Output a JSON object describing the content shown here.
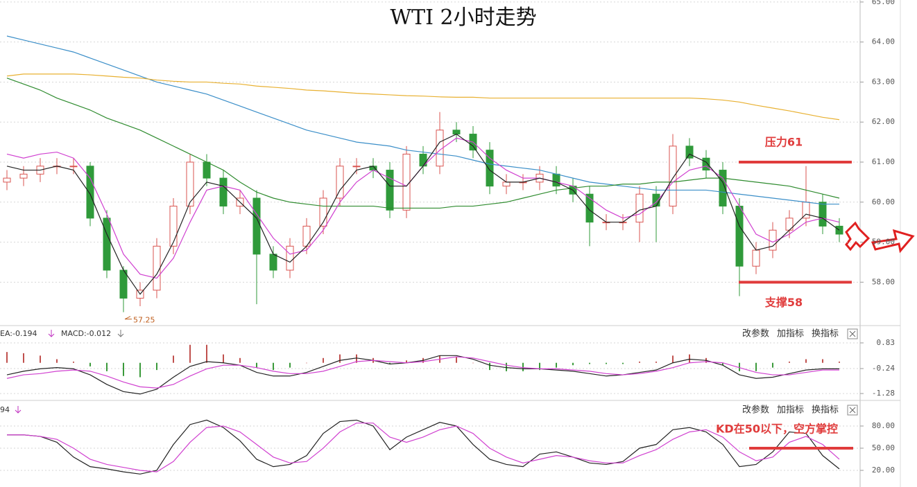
{
  "chart_data": [
    {
      "type": "candlestick",
      "title": "WTI 2小时走势",
      "open": [
        60.5,
        60.6,
        60.7,
        60.9,
        60.9,
        60.9,
        59.6,
        58.3,
        57.6,
        57.8,
        58.9,
        59.9,
        61.0,
        60.6,
        59.9,
        60.1,
        58.7,
        58.3,
        58.9,
        59.4,
        60.1,
        60.9,
        60.9,
        60.8,
        59.8,
        61.2,
        60.9,
        61.8,
        61.7,
        61.3,
        60.4,
        60.5,
        60.5,
        60.7,
        60.4,
        60.2,
        59.5,
        59.5,
        59.5,
        60.2,
        59.9,
        61.4,
        61.1,
        60.8,
        59.9,
        58.4,
        58.8,
        59.3,
        59.6,
        60.0,
        59.4
      ],
      "high": [
        60.8,
        60.9,
        61.1,
        61.1,
        61.1,
        61.0,
        59.8,
        58.4,
        58.0,
        59.1,
        60.1,
        61.2,
        61.2,
        60.8,
        60.3,
        60.3,
        58.9,
        59.1,
        59.6,
        60.3,
        61.1,
        61.1,
        61.1,
        61.0,
        61.4,
        61.4,
        62.25,
        62.0,
        61.9,
        61.5,
        60.7,
        60.7,
        60.9,
        60.9,
        60.6,
        60.4,
        59.7,
        59.7,
        60.4,
        60.4,
        61.7,
        61.6,
        61.3,
        61.0,
        60.1,
        59.0,
        59.5,
        59.8,
        60.9,
        60.2,
        59.6
      ],
      "low": [
        60.3,
        60.4,
        60.5,
        60.7,
        60.7,
        59.4,
        58.1,
        57.25,
        57.4,
        57.6,
        58.7,
        59.7,
        60.4,
        59.7,
        59.7,
        57.45,
        58.1,
        58.1,
        58.7,
        59.2,
        59.9,
        60.7,
        60.6,
        59.6,
        59.6,
        60.7,
        60.7,
        61.5,
        61.1,
        60.2,
        60.2,
        60.3,
        60.3,
        60.2,
        60.0,
        58.9,
        59.3,
        59.3,
        59.0,
        59.0,
        59.7,
        60.9,
        60.6,
        59.7,
        57.65,
        58.2,
        58.6,
        59.1,
        59.4,
        59.2,
        59.0
      ],
      "close": [
        60.6,
        60.7,
        60.9,
        60.9,
        60.9,
        59.6,
        58.3,
        57.6,
        57.8,
        58.9,
        59.9,
        61.0,
        60.6,
        59.9,
        60.1,
        58.7,
        58.3,
        58.9,
        59.4,
        60.1,
        60.9,
        60.9,
        60.8,
        59.8,
        61.2,
        60.9,
        61.8,
        61.7,
        61.3,
        60.4,
        60.5,
        60.5,
        60.7,
        60.4,
        60.2,
        59.5,
        59.5,
        59.5,
        60.2,
        59.9,
        61.4,
        61.1,
        60.8,
        59.9,
        58.4,
        58.8,
        59.3,
        59.6,
        60.0,
        59.4,
        59.2
      ],
      "up_color": "#d9534f",
      "down_color": "#2f9a3a",
      "series": [
        {
          "color": "#3a8ec8",
          "values": [
            64.15,
            64.05,
            63.95,
            63.85,
            63.75,
            63.6,
            63.45,
            63.3,
            63.15,
            63.0,
            62.9,
            62.8,
            62.7,
            62.55,
            62.4,
            62.25,
            62.1,
            61.95,
            61.8,
            61.7,
            61.6,
            61.5,
            61.45,
            61.4,
            61.3,
            61.25,
            61.2,
            61.15,
            61.05,
            60.95,
            60.9,
            60.85,
            60.8,
            60.7,
            60.6,
            60.5,
            60.45,
            60.4,
            60.35,
            60.3,
            60.3,
            60.3,
            60.3,
            60.25,
            60.2,
            60.15,
            60.1,
            60.05,
            60.0,
            59.95,
            59.95
          ]
        },
        {
          "color": "#e8b030",
          "values": [
            63.15,
            63.2,
            63.2,
            63.2,
            63.2,
            63.18,
            63.15,
            63.12,
            63.1,
            63.05,
            63.02,
            63.0,
            63.0,
            62.97,
            62.95,
            62.9,
            62.87,
            62.84,
            62.8,
            62.78,
            62.75,
            62.72,
            62.7,
            62.68,
            62.66,
            62.65,
            62.63,
            62.62,
            62.62,
            62.6,
            62.6,
            62.6,
            62.6,
            62.6,
            62.6,
            62.6,
            62.6,
            62.6,
            62.6,
            62.6,
            62.6,
            62.6,
            62.58,
            62.55,
            62.5,
            62.42,
            62.35,
            62.28,
            62.2,
            62.12,
            62.06
          ]
        },
        {
          "color": "#2e8b2e",
          "values": [
            63.1,
            62.95,
            62.8,
            62.6,
            62.45,
            62.3,
            62.1,
            61.95,
            61.8,
            61.6,
            61.4,
            61.2,
            61.0,
            60.8,
            60.5,
            60.25,
            60.1,
            60.0,
            59.95,
            59.9,
            59.9,
            59.9,
            59.9,
            59.85,
            59.85,
            59.85,
            59.85,
            59.9,
            59.9,
            59.95,
            60.0,
            60.1,
            60.2,
            60.3,
            60.35,
            60.4,
            60.4,
            60.45,
            60.45,
            60.5,
            60.5,
            60.55,
            60.6,
            60.6,
            60.55,
            60.5,
            60.45,
            60.4,
            60.3,
            60.2,
            60.1
          ]
        },
        {
          "color": "#d040d0",
          "values": [
            61.2,
            61.1,
            61.2,
            61.25,
            61.1,
            60.6,
            59.7,
            58.7,
            58.2,
            58.1,
            58.6,
            59.5,
            60.3,
            60.4,
            60.3,
            59.7,
            59.1,
            58.7,
            58.8,
            59.3,
            60.0,
            60.5,
            60.8,
            60.6,
            60.4,
            60.9,
            61.3,
            61.6,
            61.5,
            61.1,
            60.8,
            60.6,
            60.6,
            60.5,
            60.4,
            60.1,
            59.8,
            59.6,
            59.7,
            60.0,
            60.5,
            60.8,
            60.9,
            60.6,
            59.9,
            59.2,
            59.0,
            59.2,
            59.5,
            59.6,
            59.5
          ]
        },
        {
          "color": "#222222",
          "values": [
            60.9,
            60.8,
            60.8,
            60.9,
            60.8,
            60.2,
            59.2,
            58.3,
            57.7,
            58.2,
            59.0,
            60.0,
            60.5,
            60.4,
            60.0,
            59.6,
            58.7,
            58.5,
            58.9,
            59.5,
            60.3,
            60.8,
            60.9,
            60.4,
            60.4,
            60.9,
            61.5,
            61.7,
            61.4,
            60.8,
            60.5,
            60.5,
            60.6,
            60.5,
            60.3,
            59.8,
            59.5,
            59.5,
            59.8,
            59.9,
            60.6,
            61.2,
            61.0,
            60.5,
            59.4,
            58.8,
            58.9,
            59.3,
            59.7,
            59.6,
            59.3
          ]
        }
      ],
      "ylim": [
        56.95,
        65.05
      ],
      "yticks": [
        {
          "value": 58,
          "label": "58.00"
        },
        {
          "value": 59,
          "label": "59.00"
        },
        {
          "value": 60,
          "label": "60.00"
        },
        {
          "value": 61,
          "label": "61.00"
        },
        {
          "value": 62,
          "label": "62.00"
        },
        {
          "value": 63,
          "label": "63.00"
        },
        {
          "value": 64,
          "label": "64.00"
        },
        {
          "value": 65,
          "label": "65.00"
        }
      ],
      "grid": true,
      "refs": [
        {
          "label": "压力61",
          "value": 61,
          "color": "#e03c3c"
        },
        {
          "label": "支撑58",
          "value": 58,
          "color": "#e03c3c"
        }
      ]
    },
    {
      "type": "bar",
      "header": [
        "EA:-0.194",
        "MACD:-0.012"
      ],
      "values": [
        0.45,
        0.4,
        0.3,
        0.15,
        0.05,
        -0.15,
        -0.35,
        -0.55,
        -0.6,
        -0.3,
        0.3,
        0.75,
        0.75,
        0.35,
        0.2,
        -0.2,
        -0.3,
        -0.2,
        0.0,
        0.2,
        0.35,
        0.35,
        0.2,
        -0.05,
        0.1,
        0.2,
        0.3,
        0.25,
        0.0,
        -0.3,
        -0.35,
        -0.35,
        -0.3,
        -0.2,
        -0.1,
        -0.05,
        -0.05,
        -0.05,
        0.05,
        0.05,
        0.3,
        0.35,
        0.2,
        -0.1,
        -0.35,
        -0.35,
        -0.2,
        0.05,
        0.15,
        0.15,
        0.05
      ],
      "up_color": "#c0504d",
      "down_color": "#3a9a3a",
      "series": [
        {
          "color": "#222222",
          "values": [
            -0.5,
            -0.35,
            -0.25,
            -0.2,
            -0.25,
            -0.5,
            -0.9,
            -1.2,
            -1.3,
            -1.1,
            -0.6,
            -0.15,
            0.05,
            0.0,
            -0.1,
            -0.4,
            -0.55,
            -0.55,
            -0.4,
            -0.15,
            0.1,
            0.2,
            0.1,
            -0.05,
            0.0,
            0.1,
            0.3,
            0.3,
            0.15,
            -0.1,
            -0.2,
            -0.25,
            -0.25,
            -0.3,
            -0.35,
            -0.45,
            -0.55,
            -0.5,
            -0.4,
            -0.3,
            0.0,
            0.15,
            0.1,
            -0.1,
            -0.5,
            -0.65,
            -0.6,
            -0.45,
            -0.3,
            -0.25,
            -0.25
          ]
        },
        {
          "color": "#d040d0",
          "values": [
            -0.65,
            -0.5,
            -0.45,
            -0.35,
            -0.3,
            -0.35,
            -0.55,
            -0.8,
            -1.0,
            -1.05,
            -0.9,
            -0.55,
            -0.25,
            -0.1,
            -0.1,
            -0.2,
            -0.35,
            -0.45,
            -0.45,
            -0.35,
            -0.15,
            0.05,
            0.1,
            0.05,
            0.0,
            0.05,
            0.15,
            0.25,
            0.2,
            0.05,
            -0.1,
            -0.2,
            -0.25,
            -0.25,
            -0.3,
            -0.35,
            -0.45,
            -0.5,
            -0.45,
            -0.35,
            -0.2,
            0.0,
            0.05,
            0.0,
            -0.2,
            -0.4,
            -0.5,
            -0.5,
            -0.4,
            -0.3,
            -0.3
          ]
        }
      ],
      "ylim": [
        -1.48,
        1.32
      ],
      "yticks": [
        -1.28,
        -0.24,
        0.83
      ],
      "grid": true
    },
    {
      "type": "line",
      "header": [
        "94"
      ],
      "series": [
        {
          "color": "#222222",
          "values": [
            68,
            68,
            66,
            58,
            38,
            25,
            22,
            18,
            15,
            20,
            55,
            82,
            88,
            78,
            60,
            35,
            25,
            28,
            40,
            70,
            86,
            88,
            80,
            48,
            65,
            75,
            85,
            80,
            55,
            35,
            28,
            25,
            42,
            45,
            38,
            30,
            28,
            32,
            50,
            55,
            75,
            78,
            72,
            55,
            25,
            28,
            45,
            72,
            70,
            40,
            22
          ]
        },
        {
          "color": "#d040d0",
          "values": [
            68,
            68,
            66,
            62,
            50,
            35,
            28,
            24,
            20,
            18,
            32,
            58,
            78,
            80,
            72,
            55,
            38,
            30,
            32,
            50,
            72,
            84,
            84,
            65,
            58,
            65,
            75,
            80,
            70,
            50,
            38,
            30,
            35,
            40,
            38,
            33,
            30,
            30,
            40,
            48,
            62,
            72,
            75,
            65,
            45,
            33,
            38,
            58,
            66,
            55,
            35
          ]
        }
      ],
      "ylim": [
        0.3,
        108.1
      ],
      "yticks": [
        {
          "value": 20,
          "label": "20.00"
        },
        {
          "value": 50,
          "label": "50.00"
        },
        {
          "value": 80,
          "label": "80.00"
        }
      ],
      "grid": true,
      "refs": [
        {
          "label": "KD在50以下，空方掌控",
          "value": 50,
          "color": "#e03c3c"
        }
      ]
    }
  ],
  "toolbar": [
    "改参数",
    "加指标",
    "换指标"
  ]
}
